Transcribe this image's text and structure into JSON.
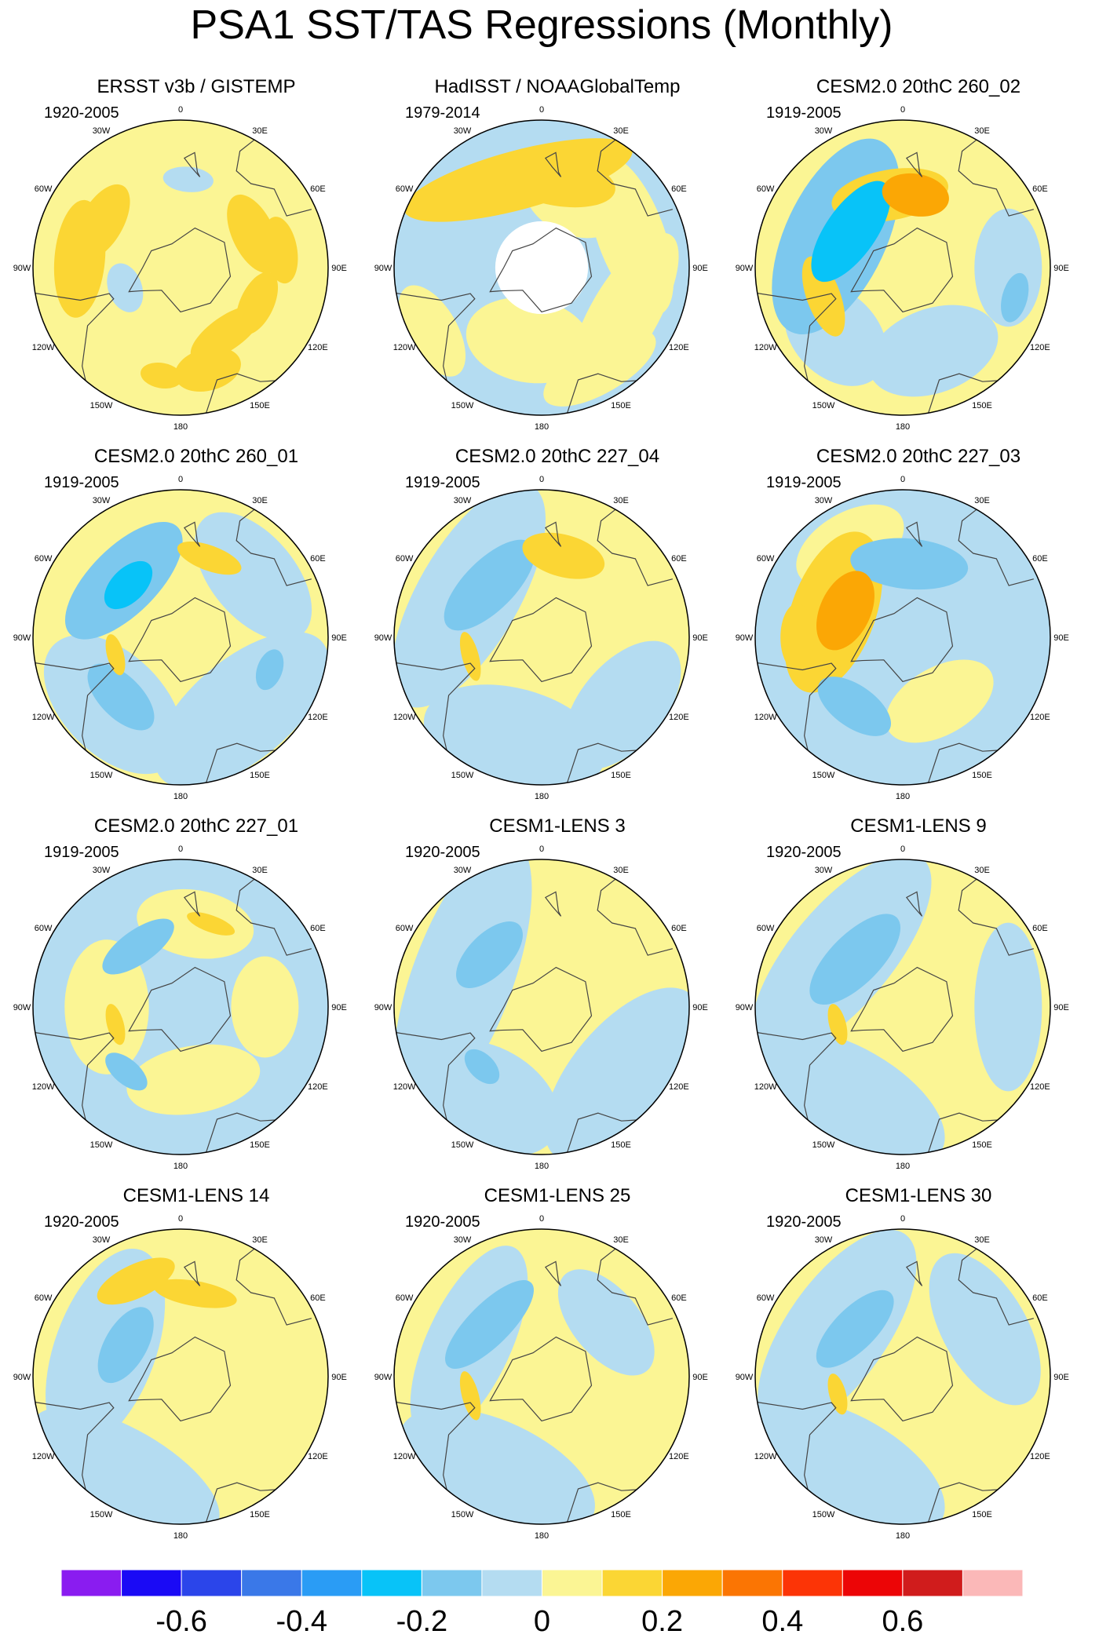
{
  "title": "PSA1 SST/TAS Regressions (Monthly)",
  "lon_labels": [
    "0",
    "30E",
    "60E",
    "90E",
    "120E",
    "150E",
    "180",
    "150W",
    "120W",
    "90W",
    "60W",
    "30W"
  ],
  "panels": [
    {
      "title": "ERSST v3b / GISTEMP",
      "period": "1920-2005"
    },
    {
      "title": "HadISST / NOAAGlobalTemp",
      "period": "1979-2014"
    },
    {
      "title": "CESM2.0 20thC 260_02",
      "period": "1919-2005"
    },
    {
      "title": "CESM2.0 20thC 260_01",
      "period": "1919-2005"
    },
    {
      "title": "CESM2.0 20thC 227_04",
      "period": "1919-2005"
    },
    {
      "title": "CESM2.0 20thC 227_03",
      "period": "1919-2005"
    },
    {
      "title": "CESM2.0 20thC 227_01",
      "period": "1919-2005"
    },
    {
      "title": "CESM1-LENS 3",
      "period": "1920-2005"
    },
    {
      "title": "CESM1-LENS 9",
      "period": "1920-2005"
    },
    {
      "title": "CESM1-LENS 14",
      "period": "1920-2005"
    },
    {
      "title": "CESM1-LENS 25",
      "period": "1920-2005"
    },
    {
      "title": "CESM1-LENS 30",
      "period": "1920-2005"
    }
  ],
  "chart_data": {
    "type": "heatmap",
    "projection": "south polar stereographic",
    "title": "PSA1 SST/TAS Regressions (Monthly)",
    "colorbar": {
      "levels": [
        -0.7,
        -0.6,
        -0.5,
        -0.4,
        -0.3,
        -0.2,
        -0.1,
        0,
        0.1,
        0.2,
        0.3,
        0.4,
        0.5,
        0.6,
        0.7
      ],
      "tick_labels": [
        "-0.6",
        "-0.4",
        "-0.2",
        "0",
        "0.2",
        "0.4",
        "0.6"
      ],
      "tick_values": [
        -0.6,
        -0.4,
        -0.2,
        0,
        0.2,
        0.4,
        0.6
      ],
      "colors": [
        "#8a1cf0",
        "#1a0af5",
        "#2b45ea",
        "#3a78e8",
        "#2a9cf5",
        "#08c3f8",
        "#7cc8ee",
        "#b4dcf1",
        "#fbf594",
        "#fbd634",
        "#fba705",
        "#fb7503",
        "#fc3406",
        "#ec0506",
        "#d01c1c",
        "#fbb8b8"
      ]
    },
    "panels": [
      {
        "title": "ERSST v3b / GISTEMP",
        "period": "1920-2005",
        "background": 0.05,
        "features": [
          {
            "lon": 15,
            "lat": -40,
            "value": 0.15,
            "rl": 8,
            "rw": 5
          },
          {
            "lon": -10,
            "lat": -38,
            "value": 0.15,
            "rl": 5,
            "rw": 3
          },
          {
            "lon": 35,
            "lat": -52,
            "value": 0.15,
            "rl": 10,
            "rw": 4
          },
          {
            "lon": 65,
            "lat": -50,
            "value": 0.15,
            "rl": 8,
            "rw": 4
          },
          {
            "lon": -95,
            "lat": -42,
            "value": 0.15,
            "rl": 14,
            "rw": 6
          },
          {
            "lon": -120,
            "lat": -47,
            "value": 0.15,
            "rl": 10,
            "rw": 5
          },
          {
            "lon": 115,
            "lat": -52,
            "value": 0.15,
            "rl": 10,
            "rw": 5
          },
          {
            "lon": 100,
            "lat": -42,
            "value": 0.15,
            "rl": 8,
            "rw": 4
          },
          {
            "lon": -70,
            "lat": -62,
            "value": -0.05,
            "rl": 6,
            "rw": 4
          },
          {
            "lon": 175,
            "lat": -48,
            "value": -0.05,
            "rl": 6,
            "rw": 3
          }
        ]
      },
      {
        "title": "HadISST / NOAAGlobalTemp",
        "period": "1979-2014",
        "background": -0.05,
        "mask_lat": -68,
        "features": [
          {
            "lon": -165,
            "lat": -47,
            "value": 0.15,
            "rl": 28,
            "rw": 7
          },
          {
            "lon": 170,
            "lat": -48,
            "value": 0.15,
            "rl": 14,
            "rw": 6
          },
          {
            "lon": 155,
            "lat": -55,
            "value": 0.05,
            "rl": 12,
            "rw": 8
          },
          {
            "lon": 110,
            "lat": -45,
            "value": 0.05,
            "rl": 20,
            "rw": 8
          },
          {
            "lon": 60,
            "lat": -45,
            "value": 0.05,
            "rl": 22,
            "rw": 8
          },
          {
            "lon": -10,
            "lat": -55,
            "value": 0.05,
            "rl": 15,
            "rw": 10
          },
          {
            "lon": 30,
            "lat": -35,
            "value": 0.05,
            "rl": 15,
            "rw": 6
          },
          {
            "lon": -60,
            "lat": -30,
            "value": 0.05,
            "rl": 12,
            "rw": 6
          }
        ]
      },
      {
        "title": "CESM2.0 20thC 260_02",
        "period": "1919-2005",
        "background": 0.05,
        "features": [
          {
            "lon": -125,
            "lat": -60,
            "value": -0.25,
            "rl": 14,
            "rw": 6
          },
          {
            "lon": -115,
            "lat": -55,
            "value": -0.15,
            "rl": 25,
            "rw": 12
          },
          {
            "lon": -170,
            "lat": -55,
            "value": 0.15,
            "rl": 14,
            "rw": 6
          },
          {
            "lon": 170,
            "lat": -55,
            "value": 0.25,
            "rl": 8,
            "rw": 5
          },
          {
            "lon": -70,
            "lat": -50,
            "value": 0.15,
            "rl": 10,
            "rw": 4
          },
          {
            "lon": -45,
            "lat": -45,
            "value": -0.05,
            "rl": 14,
            "rw": 10
          },
          {
            "lon": 20,
            "lat": -48,
            "value": -0.05,
            "rl": 16,
            "rw": 10
          },
          {
            "lon": 90,
            "lat": -40,
            "value": -0.05,
            "rl": 14,
            "rw": 8
          },
          {
            "lon": 75,
            "lat": -35,
            "value": -0.15,
            "rl": 6,
            "rw": 3
          }
        ]
      },
      {
        "title": "CESM2.0 20thC 260_01",
        "period": "1919-2005",
        "background": 0.05,
        "features": [
          {
            "lon": -135,
            "lat": -55,
            "value": -0.25,
            "rl": 7,
            "rw": 4
          },
          {
            "lon": -135,
            "lat": -52,
            "value": -0.15,
            "rl": 18,
            "rw": 8
          },
          {
            "lon": -45,
            "lat": -50,
            "value": -0.15,
            "rl": 10,
            "rw": 5
          },
          {
            "lon": 70,
            "lat": -45,
            "value": -0.15,
            "rl": 5,
            "rw": 3
          },
          {
            "lon": -45,
            "lat": -45,
            "value": -0.05,
            "rl": 20,
            "rw": 12
          },
          {
            "lon": 40,
            "lat": -45,
            "value": -0.05,
            "rl": 25,
            "rw": 12
          },
          {
            "lon": 130,
            "lat": -45,
            "value": -0.05,
            "rl": 18,
            "rw": 10
          },
          {
            "lon": -75,
            "lat": -58,
            "value": 0.15,
            "rl": 5,
            "rw": 2
          },
          {
            "lon": 160,
            "lat": -50,
            "value": 0.15,
            "rl": 8,
            "rw": 3
          }
        ]
      },
      {
        "title": "CESM2.0 20thC 227_04",
        "period": "1919-2005",
        "background": 0.05,
        "features": [
          {
            "lon": -135,
            "lat": -55,
            "value": -0.15,
            "rl": 14,
            "rw": 6
          },
          {
            "lon": -120,
            "lat": -50,
            "value": -0.05,
            "rl": 30,
            "rw": 12
          },
          {
            "lon": -15,
            "lat": -40,
            "value": -0.05,
            "rl": 22,
            "rw": 12
          },
          {
            "lon": 50,
            "lat": -40,
            "value": -0.05,
            "rl": 18,
            "rw": 10
          },
          {
            "lon": 165,
            "lat": -50,
            "value": 0.15,
            "rl": 10,
            "rw": 5
          },
          {
            "lon": -75,
            "lat": -55,
            "value": 0.15,
            "rl": 6,
            "rw": 2
          }
        ]
      },
      {
        "title": "CESM2.0 20thC 227_03",
        "period": "1919-2005",
        "background": -0.05,
        "features": [
          {
            "lon": -115,
            "lat": -60,
            "value": 0.25,
            "rl": 10,
            "rw": 6
          },
          {
            "lon": -110,
            "lat": -55,
            "value": 0.15,
            "rl": 20,
            "rw": 10
          },
          {
            "lon": -90,
            "lat": -40,
            "value": 0.15,
            "rl": 8,
            "rw": 4
          },
          {
            "lon": 175,
            "lat": -55,
            "value": -0.15,
            "rl": 14,
            "rw": 6
          },
          {
            "lon": -35,
            "lat": -50,
            "value": -0.15,
            "rl": 10,
            "rw": 5
          },
          {
            "lon": 30,
            "lat": -55,
            "value": 0.05,
            "rl": 14,
            "rw": 8
          },
          {
            "lon": -150,
            "lat": -40,
            "value": 0.05,
            "rl": 14,
            "rw": 8
          }
        ]
      },
      {
        "title": "CESM2.0 20thC 227_01",
        "period": "1919-2005",
        "background": -0.05,
        "features": [
          {
            "lon": -145,
            "lat": -55,
            "value": -0.15,
            "rl": 10,
            "rw": 4
          },
          {
            "lon": -40,
            "lat": -50,
            "value": -0.15,
            "rl": 6,
            "rw": 3
          },
          {
            "lon": -90,
            "lat": -55,
            "value": 0.05,
            "rl": 16,
            "rw": 10
          },
          {
            "lon": 10,
            "lat": -55,
            "value": 0.05,
            "rl": 16,
            "rw": 8
          },
          {
            "lon": 90,
            "lat": -50,
            "value": 0.05,
            "rl": 12,
            "rw": 8
          },
          {
            "lon": 170,
            "lat": -50,
            "value": 0.05,
            "rl": 14,
            "rw": 8
          },
          {
            "lon": -75,
            "lat": -58,
            "value": 0.15,
            "rl": 5,
            "rw": 2
          },
          {
            "lon": 160,
            "lat": -48,
            "value": 0.15,
            "rl": 6,
            "rw": 2
          }
        ]
      },
      {
        "title": "CESM1-LENS 3",
        "period": "1920-2005",
        "background": 0.05,
        "features": [
          {
            "lon": -135,
            "lat": -55,
            "value": -0.15,
            "rl": 10,
            "rw": 5
          },
          {
            "lon": -110,
            "lat": -50,
            "value": -0.05,
            "rl": 35,
            "rw": 12
          },
          {
            "lon": 50,
            "lat": -40,
            "value": -0.05,
            "rl": 25,
            "rw": 12
          },
          {
            "lon": -30,
            "lat": -40,
            "value": -0.05,
            "rl": 18,
            "rw": 12
          },
          {
            "lon": -45,
            "lat": -50,
            "value": -0.15,
            "rl": 5,
            "rw": 3
          }
        ]
      },
      {
        "title": "CESM1-LENS 9",
        "period": "1920-2005",
        "background": 0.05,
        "features": [
          {
            "lon": -135,
            "lat": -58,
            "value": -0.15,
            "rl": 14,
            "rw": 6
          },
          {
            "lon": -130,
            "lat": -52,
            "value": -0.05,
            "rl": 30,
            "rw": 12
          },
          {
            "lon": -30,
            "lat": -40,
            "value": -0.05,
            "rl": 25,
            "rw": 12
          },
          {
            "lon": 90,
            "lat": -40,
            "value": -0.05,
            "rl": 20,
            "rw": 8
          },
          {
            "lon": -75,
            "lat": -58,
            "value": 0.15,
            "rl": 5,
            "rw": 2
          }
        ]
      },
      {
        "title": "CESM1-LENS 14",
        "period": "1920-2005",
        "background": 0.05,
        "features": [
          {
            "lon": -120,
            "lat": -60,
            "value": -0.15,
            "rl": 10,
            "rw": 5
          },
          {
            "lon": -110,
            "lat": -52,
            "value": -0.05,
            "rl": 25,
            "rw": 12
          },
          {
            "lon": -30,
            "lat": -38,
            "value": -0.05,
            "rl": 25,
            "rw": 10
          },
          {
            "lon": -155,
            "lat": -40,
            "value": 0.15,
            "rl": 10,
            "rw": 4
          },
          {
            "lon": 170,
            "lat": -50,
            "value": 0.15,
            "rl": 10,
            "rw": 3
          }
        ]
      },
      {
        "title": "CESM1-LENS 25",
        "period": "1920-2005",
        "background": 0.05,
        "features": [
          {
            "lon": -135,
            "lat": -55,
            "value": -0.15,
            "rl": 14,
            "rw": 5
          },
          {
            "lon": -115,
            "lat": -52,
            "value": -0.05,
            "rl": 25,
            "rw": 10
          },
          {
            "lon": -25,
            "lat": -40,
            "value": -0.05,
            "rl": 25,
            "rw": 12
          },
          {
            "lon": 130,
            "lat": -50,
            "value": -0.05,
            "rl": 15,
            "rw": 8
          },
          {
            "lon": -75,
            "lat": -55,
            "value": 0.15,
            "rl": 6,
            "rw": 2
          }
        ]
      },
      {
        "title": "CESM1-LENS 30",
        "period": "1920-2005",
        "background": 0.05,
        "features": [
          {
            "lon": -135,
            "lat": -58,
            "value": -0.15,
            "rl": 12,
            "rw": 5
          },
          {
            "lon": -125,
            "lat": -52,
            "value": -0.05,
            "rl": 28,
            "rw": 12
          },
          {
            "lon": -30,
            "lat": -40,
            "value": -0.05,
            "rl": 25,
            "rw": 12
          },
          {
            "lon": 120,
            "lat": -45,
            "value": -0.05,
            "rl": 20,
            "rw": 10
          },
          {
            "lon": -75,
            "lat": -58,
            "value": 0.15,
            "rl": 5,
            "rw": 2
          }
        ]
      }
    ]
  }
}
